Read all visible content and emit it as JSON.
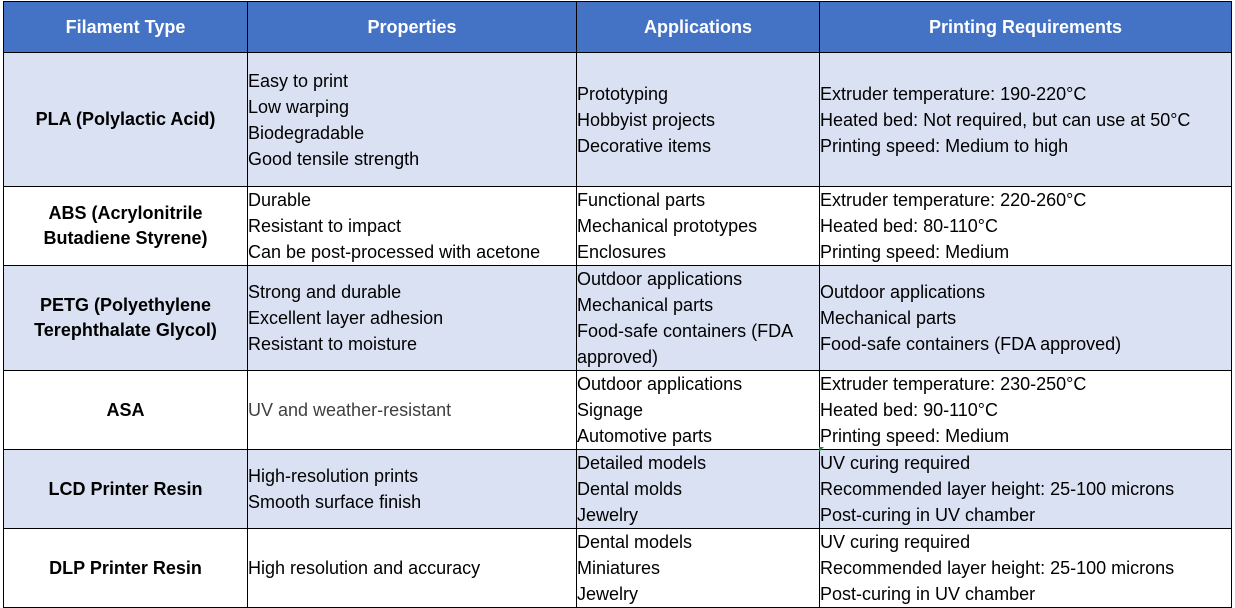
{
  "headers": [
    "Filament Type",
    "Properties",
    "Applications",
    "Printing Requirements"
  ],
  "rows": [
    {
      "type_lines": [
        "PLA (Polylactic Acid)"
      ],
      "properties": [
        "Easy to print",
        "Low warping",
        "Biodegradable",
        "Good tensile strength"
      ],
      "applications": [
        "Prototyping",
        "Hobbyist projects",
        "Decorative items"
      ],
      "requirements": [
        "Extruder temperature: 190-220°C",
        "Heated bed: Not required, but can use at 50°C",
        "Printing speed: Medium to high"
      ]
    },
    {
      "type_lines": [
        "ABS (Acrylonitrile",
        "Butadiene Styrene)"
      ],
      "properties": [
        "Durable",
        "Resistant to impact",
        "Can be post-processed with acetone"
      ],
      "applications": [
        "Functional parts",
        "Mechanical prototypes",
        "Enclosures"
      ],
      "requirements": [
        "Extruder temperature: 220-260°C",
        "Heated bed: 80-110°C",
        "Printing speed: Medium"
      ]
    },
    {
      "type_lines": [
        "PETG (Polyethylene",
        "Terephthalate Glycol)"
      ],
      "properties": [
        "Strong and durable",
        "Excellent layer adhesion",
        "Resistant to moisture"
      ],
      "applications": [
        "Outdoor applications",
        "Mechanical parts",
        "Food-safe containers (FDA approved)"
      ],
      "requirements": [
        "Outdoor applications",
        "Mechanical parts",
        "Food-safe containers (FDA approved)"
      ]
    },
    {
      "type_lines": [
        "ASA"
      ],
      "properties": [
        "UV and weather-resistant"
      ],
      "applications": [
        "Outdoor applications",
        "Signage",
        "Automotive parts"
      ],
      "requirements": [
        "Extruder temperature: 230-250°C",
        "Heated bed: 90-110°C",
        "Printing speed: Medium"
      ]
    },
    {
      "type_lines": [
        "LCD Printer Resin"
      ],
      "properties": [
        "High-resolution prints",
        "Smooth surface finish"
      ],
      "applications": [
        "Detailed models",
        "Dental molds",
        "Jewelry"
      ],
      "requirements": [
        "UV curing required",
        "Recommended layer height: 25-100 microns",
        "Post-curing in UV chamber"
      ]
    },
    {
      "type_lines": [
        "DLP Printer Resin"
      ],
      "properties": [
        "High resolution and accuracy"
      ],
      "applications": [
        "Dental models",
        "Miniatures",
        "Jewelry"
      ],
      "requirements": [
        "UV curing required",
        "Recommended layer height: 25-100 microns",
        "Post-curing in UV chamber"
      ]
    }
  ],
  "colors": {
    "header_bg": "#4472c4",
    "band_bg": "#d9e1f2",
    "border": "#000000"
  }
}
